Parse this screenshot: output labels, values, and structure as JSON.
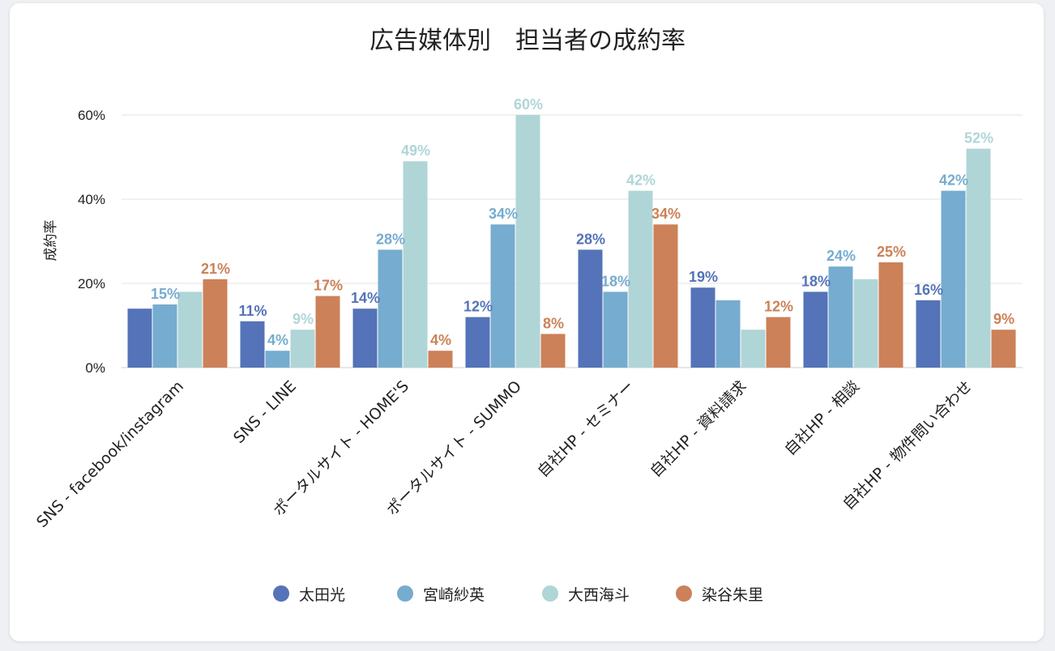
{
  "chart_data": {
    "type": "bar",
    "title": "広告媒体別　担当者の成約率",
    "xlabel": "",
    "ylabel": "成約率",
    "ylim": [
      0,
      60
    ],
    "yticks": [
      "0%",
      "20%",
      "40%",
      "60%"
    ],
    "ytick_values": [
      0,
      20,
      40,
      60
    ],
    "grid": true,
    "legend_position": "bottom",
    "categories": [
      "SNS - facebook/instagram",
      "SNS - LINE",
      "ポータルサイト - HOME'S",
      "ポータルサイト - SUMMO",
      "自社HP - セミナー",
      "自社HP - 資料請求",
      "自社HP - 相談",
      "自社HP - 物件問い合わせ"
    ],
    "series": [
      {
        "name": "太田光",
        "color": "#5473b8",
        "values": [
          14,
          11,
          14,
          12,
          28,
          19,
          18,
          16
        ],
        "labels": [
          null,
          "11%",
          "14%",
          "12%",
          "28%",
          "19%",
          "18%",
          "16%"
        ]
      },
      {
        "name": "宮崎紗英",
        "color": "#75accf",
        "values": [
          15,
          4,
          28,
          34,
          18,
          16,
          24,
          42
        ],
        "labels": [
          "15%",
          "4%",
          "28%",
          "34%",
          "18%",
          null,
          "24%",
          "42%"
        ]
      },
      {
        "name": "大西海斗",
        "color": "#b0d5d7",
        "values": [
          18,
          9,
          49,
          60,
          42,
          9,
          21,
          52
        ],
        "labels": [
          null,
          "9%",
          "49%",
          "60%",
          "42%",
          null,
          null,
          "52%"
        ]
      },
      {
        "name": "染谷朱里",
        "color": "#cc8158",
        "values": [
          21,
          17,
          4,
          8,
          34,
          12,
          25,
          9
        ],
        "labels": [
          "21%",
          "17%",
          "4%",
          "8%",
          "34%",
          "12%",
          "25%",
          "9%"
        ]
      }
    ]
  }
}
